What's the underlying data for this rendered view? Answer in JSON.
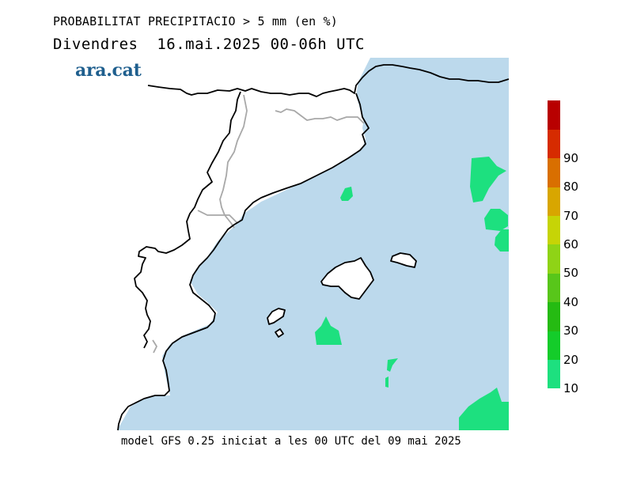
{
  "header": {
    "title": "PROBABILITAT PRECIPITACIO > 5 mm (en %)",
    "subtitle": "Divendres  16.mai.2025 00-06h UTC"
  },
  "logo_text": "ara.cat",
  "footer": "model GFS 0.25 iniciat a les 00 UTC del 09 mai 2025",
  "colors": {
    "sea": "#bcd9ec",
    "land": "#ffffff",
    "coast": "#000000",
    "border": "#a8a8a8",
    "precip_10_20": "#1de07f"
  },
  "colorbar": {
    "labels": [
      "10",
      "20",
      "30",
      "40",
      "50",
      "60",
      "70",
      "80",
      "90"
    ],
    "bins": [
      {
        "from": 10,
        "to": 20,
        "color": "#1de07f"
      },
      {
        "from": 20,
        "to": 30,
        "color": "#14cc2a"
      },
      {
        "from": 30,
        "to": 40,
        "color": "#25bb12"
      },
      {
        "from": 40,
        "to": 50,
        "color": "#58c61a"
      },
      {
        "from": 50,
        "to": 60,
        "color": "#8fd316"
      },
      {
        "from": 60,
        "to": 70,
        "color": "#c6d406"
      },
      {
        "from": 70,
        "to": 80,
        "color": "#d8a600"
      },
      {
        "from": 80,
        "to": 90,
        "color": "#d96f00"
      },
      {
        "from": 90,
        "to": 100,
        "color": "#d62b00"
      },
      {
        "from": 100,
        "to": 110,
        "color": "#b80000"
      }
    ]
  }
}
